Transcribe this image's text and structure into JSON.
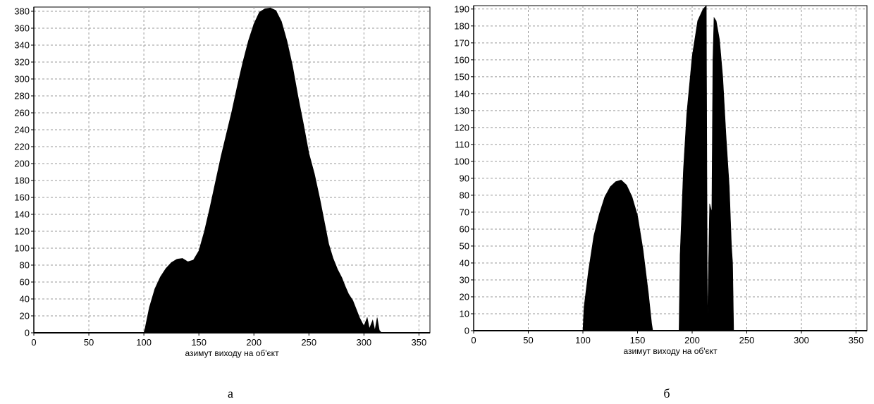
{
  "chart_data": [
    {
      "type": "area",
      "panel_caption": "а",
      "xlabel": "азимут виходу на об'єкт",
      "ylabel": "",
      "xlim": [
        0,
        360
      ],
      "ylim": [
        0,
        385
      ],
      "x_ticks": [
        0,
        50,
        100,
        150,
        200,
        250,
        300,
        350
      ],
      "y_ticks": [
        0,
        20,
        40,
        60,
        80,
        100,
        120,
        140,
        160,
        180,
        200,
        220,
        240,
        260,
        280,
        300,
        320,
        340,
        360,
        380
      ],
      "grid": true,
      "fill_color": "#000000",
      "series": [
        {
          "x": [
            0,
            100,
            101,
            105,
            110,
            115,
            120,
            125,
            130,
            135,
            140,
            145,
            150,
            155,
            160,
            165,
            170,
            175,
            180,
            185,
            190,
            195,
            200,
            205,
            210,
            215,
            220,
            225,
            230,
            235,
            240,
            245,
            250,
            255,
            260,
            265,
            268,
            272,
            276,
            280,
            283,
            286,
            290,
            293,
            296,
            300,
            303,
            305,
            308,
            310,
            312,
            314,
            316,
            360
          ],
          "y": [
            0,
            0,
            5,
            30,
            52,
            66,
            76,
            83,
            87,
            88,
            84,
            86,
            97,
            120,
            148,
            178,
            208,
            235,
            262,
            292,
            320,
            345,
            365,
            379,
            383,
            384,
            381,
            368,
            345,
            316,
            280,
            247,
            212,
            188,
            158,
            125,
            105,
            88,
            75,
            65,
            55,
            46,
            38,
            28,
            18,
            8,
            18,
            5,
            15,
            3,
            18,
            3,
            0,
            0
          ]
        }
      ]
    },
    {
      "type": "area",
      "panel_caption": "б",
      "xlabel": "азимут виходу на об'єкт",
      "ylabel": "",
      "xlim": [
        0,
        360
      ],
      "ylim": [
        0,
        192
      ],
      "x_ticks": [
        0,
        50,
        100,
        150,
        200,
        250,
        300,
        350
      ],
      "y_ticks": [
        0,
        10,
        20,
        30,
        40,
        50,
        60,
        70,
        80,
        90,
        100,
        110,
        120,
        130,
        140,
        150,
        160,
        170,
        180,
        190
      ],
      "grid": true,
      "fill_color": "#000000",
      "series": [
        {
          "x": [
            0,
            100,
            101,
            105,
            110,
            115,
            120,
            125,
            130,
            135,
            140,
            145,
            150,
            155,
            160,
            163,
            164,
            188,
            189,
            192,
            195,
            200,
            205,
            210,
            213,
            214,
            216,
            218,
            219,
            220,
            222,
            225,
            228,
            231,
            234,
            236,
            237,
            238,
            360
          ],
          "y": [
            0,
            0,
            14,
            35,
            56,
            69,
            79,
            85,
            88,
            89,
            86,
            79,
            68,
            48,
            22,
            4,
            0,
            0,
            45,
            95,
            128,
            162,
            183,
            190,
            192,
            3,
            75,
            70,
            160,
            185,
            183,
            172,
            150,
            115,
            85,
            50,
            40,
            0,
            0
          ]
        }
      ]
    }
  ]
}
